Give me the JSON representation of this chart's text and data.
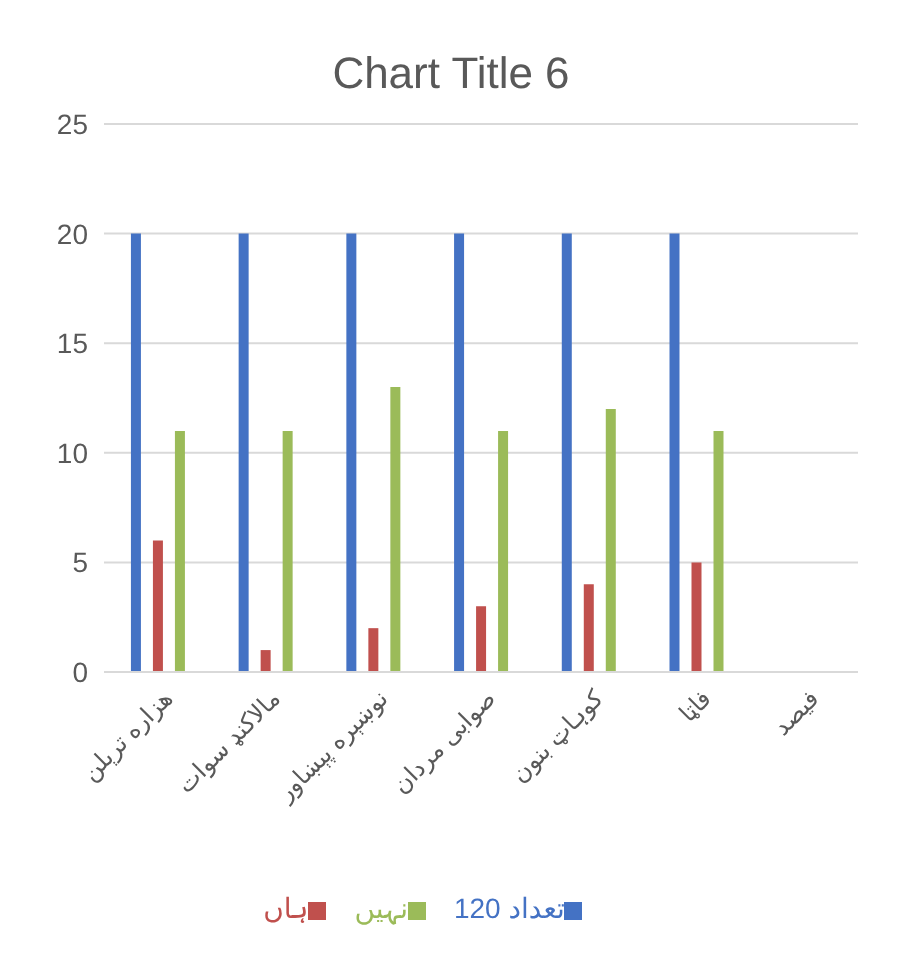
{
  "chart_data": {
    "type": "bar",
    "title": "Chart Title 6",
    "categories": [
      "هزاره ترېلن",
      "مالاکنډ سوات",
      "نوښېره پېښاور",
      "صوابی مردان",
      "کوہاټ بنون",
      "فاټا",
      "فیصد"
    ],
    "series": [
      {
        "name": "تعداد 120",
        "color": "#4472c4",
        "values": [
          20,
          20,
          20,
          20,
          20,
          20,
          null
        ]
      },
      {
        "name": "ہاں",
        "color": "#c0504d",
        "values": [
          6,
          1,
          2,
          3,
          4,
          5,
          null
        ]
      },
      {
        "name": "نہیں",
        "color": "#9bbb59",
        "values": [
          11,
          11,
          13,
          11,
          12,
          11,
          null
        ]
      }
    ],
    "ylim": [
      0,
      25
    ],
    "yticks": [
      0,
      5,
      10,
      15,
      20,
      25
    ],
    "grid": "y",
    "legend": "bottom"
  }
}
